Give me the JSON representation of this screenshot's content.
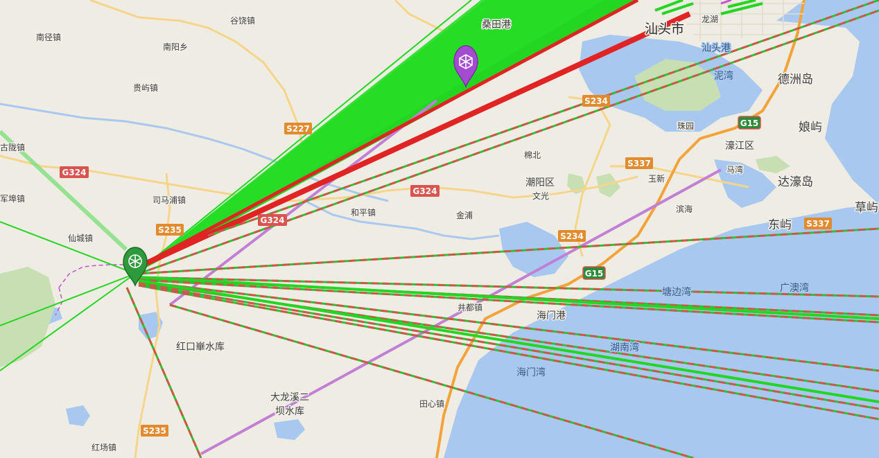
{
  "map": {
    "places": [
      {
        "id": "nanjing-zhen",
        "label": "南径镇"
      },
      {
        "id": "guyao-zhen",
        "label": "谷饶镇"
      },
      {
        "id": "nanyang-xiang",
        "label": "南阳乡"
      },
      {
        "id": "guiyu-zhen",
        "label": "贵屿镇"
      },
      {
        "id": "sangtian-gang",
        "label": "桑田港"
      },
      {
        "id": "shantou-shi",
        "label": "汕头市"
      },
      {
        "id": "longhu",
        "label": "龙湖"
      },
      {
        "id": "shantou-gang",
        "label": "汕头港"
      },
      {
        "id": "niwan",
        "label": "泥湾"
      },
      {
        "id": "dezhou-dao",
        "label": "德洲岛"
      },
      {
        "id": "niangyu",
        "label": "娘屿"
      },
      {
        "id": "haojiang-qu",
        "label": "濠江区"
      },
      {
        "id": "dahao-dao",
        "label": "达濠岛"
      },
      {
        "id": "caoyu",
        "label": "草屿"
      },
      {
        "id": "dongyu",
        "label": "东屿"
      },
      {
        "id": "zhuyuan",
        "label": "珠园"
      },
      {
        "id": "mianbei",
        "label": "棉北"
      },
      {
        "id": "chaoyang-qu",
        "label": "潮阳区"
      },
      {
        "id": "wenguang",
        "label": "文光"
      },
      {
        "id": "yuxin",
        "label": "玉新"
      },
      {
        "id": "mawan",
        "label": "马湾"
      },
      {
        "id": "binhai",
        "label": "滨海"
      },
      {
        "id": "heping-zhen",
        "label": "和平镇"
      },
      {
        "id": "jinpu",
        "label": "金浦"
      },
      {
        "id": "sima-pu-zhen",
        "label": "司马浦镇"
      },
      {
        "id": "xiancheng-zhen",
        "label": "仙城镇"
      },
      {
        "id": "junbu-zhen",
        "label": "军埠镇"
      },
      {
        "id": "gulong-zhen",
        "label": "古陇镇"
      },
      {
        "id": "tangbian-wan",
        "label": "塘边湾"
      },
      {
        "id": "guangao-wan",
        "label": "广澳湾"
      },
      {
        "id": "haimen-gang",
        "label": "海门港"
      },
      {
        "id": "hunan-wan",
        "label": "湖南湾"
      },
      {
        "id": "haimen-wan",
        "label": "海门湾"
      },
      {
        "id": "jingdu-zhen",
        "label": "井都镇"
      },
      {
        "id": "honglu-reservoir",
        "label": "红口崋水库"
      },
      {
        "id": "dalongxi-1",
        "label": "大龙溪二"
      },
      {
        "id": "dalongxi-2",
        "label": "坝水库"
      },
      {
        "id": "tianxin-zhen",
        "label": "田心镇"
      },
      {
        "id": "hongchang-zhen",
        "label": "红场镇"
      }
    ],
    "roads": [
      {
        "id": "s227",
        "label": "S227"
      },
      {
        "id": "g324-west",
        "label": "G324"
      },
      {
        "id": "g324-mid",
        "label": "G324"
      },
      {
        "id": "g324-east",
        "label": "G324"
      },
      {
        "id": "s235-north",
        "label": "S235"
      },
      {
        "id": "s235-south",
        "label": "S235"
      },
      {
        "id": "s234-north",
        "label": "S234"
      },
      {
        "id": "s234-south",
        "label": "S234"
      },
      {
        "id": "s337-west",
        "label": "S337"
      },
      {
        "id": "s337-east",
        "label": "S337"
      },
      {
        "id": "g15-north",
        "label": "G15"
      },
      {
        "id": "g15-south",
        "label": "G15"
      }
    ],
    "colors": {
      "land": "#efece4",
      "water": "#a8c8f0",
      "park": "#c8dfb4",
      "link_green": "#22d622",
      "link_red": "#e02424",
      "link_purple": "#c27fd6",
      "portal_green": "#2f9a3c",
      "portal_purple": "#a44cd1",
      "highway": "#f3a33a",
      "national_road_shield": "#d9534f",
      "provincial_road_shield": "#e28a2e",
      "expressway_shield": "#2e8b3a"
    },
    "markers": [
      {
        "id": "green-portal",
        "icon": "resistance-portal-icon"
      },
      {
        "id": "purple-portal",
        "icon": "enlightened-portal-icon"
      }
    ]
  }
}
